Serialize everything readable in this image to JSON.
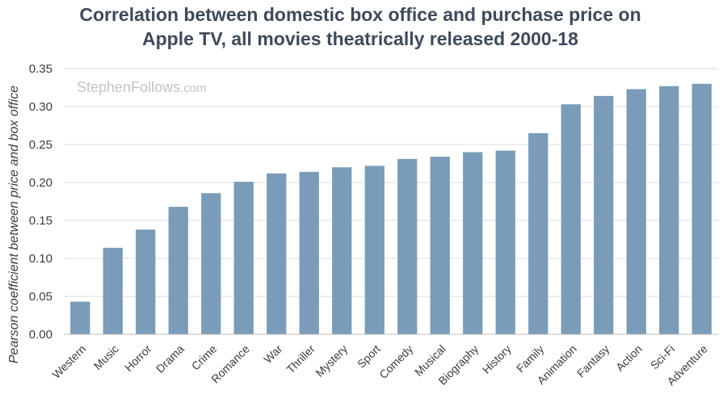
{
  "chart_data": {
    "type": "bar",
    "title_lines": [
      "Correlation between domestic  box office and purchase price on",
      "Apple TV, all movies theatrically released 2000-18"
    ],
    "watermark_main": "StephenFollows",
    "watermark_suffix": ".com",
    "ylabel": "Pearson coefficient between price and box office",
    "xlabel": "",
    "ylim": [
      0,
      0.35
    ],
    "yticks": [
      "0.00",
      "0.05",
      "0.10",
      "0.15",
      "0.20",
      "0.25",
      "0.30",
      "0.35"
    ],
    "grid": true,
    "bar_color": "#7b9cb8",
    "categories": [
      "Western",
      "Music",
      "Horror",
      "Drama",
      "Crime",
      "Romance",
      "War",
      "Thriller",
      "Mystery",
      "Sport",
      "Comedy",
      "Musical",
      "Biography",
      "History",
      "Family",
      "Animation",
      "Fantasy",
      "Action",
      "Sci-Fi",
      "Adventure"
    ],
    "values": [
      0.043,
      0.114,
      0.138,
      0.168,
      0.186,
      0.201,
      0.212,
      0.214,
      0.22,
      0.222,
      0.231,
      0.234,
      0.24,
      0.242,
      0.265,
      0.303,
      0.314,
      0.323,
      0.327,
      0.33
    ]
  }
}
